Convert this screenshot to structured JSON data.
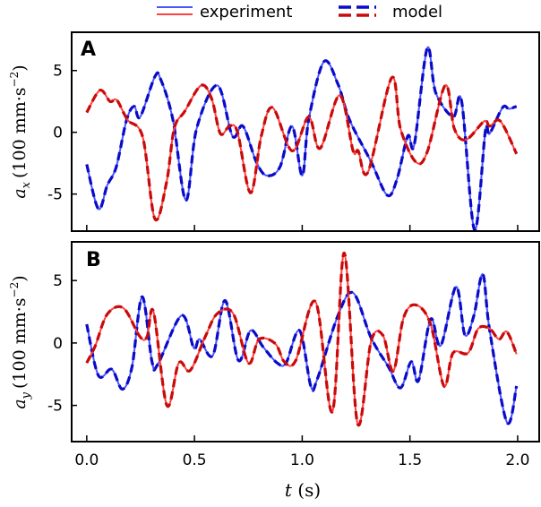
{
  "chart_data": {
    "type": "line",
    "legend": {
      "placement": "top-center",
      "entries": [
        {
          "label": "experiment",
          "style": "solid"
        },
        {
          "label": "model",
          "style": "dashed"
        }
      ]
    },
    "xlabel": "t (s)",
    "xlabel_var": "t",
    "xlabel_unit": "(s)",
    "xlim": [
      -0.07,
      2.1
    ],
    "xticks": [
      0.0,
      0.5,
      1.0,
      1.5,
      2.0
    ],
    "xtick_labels": [
      "0.0",
      "0.5",
      "1.0",
      "1.5",
      "2.0"
    ],
    "colors": {
      "blue_experiment": "#4a55ff",
      "blue_model": "#0a0ac8",
      "red_experiment": "#ff4040",
      "red_model": "#c80a0a"
    },
    "panels": [
      {
        "label": "A",
        "ylabel_var": "a",
        "ylabel_sub": "x",
        "ylabel_unit": "(100 mm·s",
        "ylabel_exp": "−2",
        "ylabel_close": ")",
        "ylim": [
          -8.0,
          8.1
        ],
        "yticks": [
          5,
          0,
          -5
        ],
        "ytick_labels": [
          "5",
          "0",
          "-5"
        ],
        "series": [
          {
            "name": "blue",
            "t": [
              0,
              0.054,
              0.095,
              0.137,
              0.185,
              0.22,
              0.248,
              0.316,
              0.343,
              0.4,
              0.46,
              0.51,
              0.606,
              0.676,
              0.725,
              0.787,
              0.835,
              0.897,
              0.953,
              1.0,
              1.03,
              1.1,
              1.166,
              1.22,
              1.32,
              1.395,
              1.44,
              1.49,
              1.52,
              1.58,
              1.62,
              1.7,
              1.74,
              1.8,
              1.85,
              1.87,
              1.93,
              1.96,
              1.995
            ],
            "values": [
              -2.6,
              -6.2,
              -4.3,
              -2.8,
              1.0,
              2.1,
              1.25,
              4.5,
              4.3,
              1.0,
              -5.5,
              0.3,
              3.8,
              -0.3,
              0.5,
              -2.4,
              -3.5,
              -2.8,
              0.5,
              -3.5,
              1.0,
              5.7,
              3.9,
              1.0,
              -2.4,
              -5.1,
              -3.8,
              -0.3,
              -1.0,
              6.8,
              3.2,
              1.25,
              2.5,
              -7.9,
              0.1,
              -0.1,
              2.0,
              1.9,
              2.1
            ]
          },
          {
            "name": "red",
            "t": [
              0,
              0.061,
              0.108,
              0.14,
              0.19,
              0.26,
              0.316,
              0.37,
              0.406,
              0.455,
              0.531,
              0.58,
              0.62,
              0.663,
              0.7,
              0.76,
              0.81,
              0.863,
              0.953,
              1.03,
              1.083,
              1.174,
              1.236,
              1.26,
              1.306,
              1.415,
              1.456,
              1.527,
              1.58,
              1.664,
              1.706,
              1.76,
              1.845,
              1.87,
              1.92,
              1.995
            ],
            "values": [
              1.6,
              3.4,
              2.5,
              2.6,
              1.0,
              -0.4,
              -7.0,
              -4.1,
              0.3,
              1.7,
              3.8,
              2.7,
              -0.1,
              0.5,
              0.0,
              -4.9,
              -0.3,
              2.0,
              -1.5,
              1.25,
              -1.3,
              3.0,
              -1.5,
              -1.5,
              -3.2,
              4.4,
              0.3,
              -2.4,
              -1.6,
              3.8,
              0.3,
              -0.6,
              0.9,
              0.5,
              0.9,
              -1.75
            ]
          }
        ]
      },
      {
        "label": "B",
        "ylabel_var": "a",
        "ylabel_sub": "y",
        "ylabel_unit": "(100 mm·s",
        "ylabel_exp": "−2",
        "ylabel_close": ")",
        "ylim": [
          -7.9,
          8.1
        ],
        "yticks": [
          5,
          0,
          -5
        ],
        "ytick_labels": [
          "5",
          "0",
          "-5"
        ],
        "series": [
          {
            "name": "blue",
            "t": [
              0,
              0.054,
              0.116,
              0.165,
              0.21,
              0.257,
              0.303,
              0.33,
              0.44,
              0.497,
              0.524,
              0.585,
              0.642,
              0.704,
              0.76,
              0.818,
              0.884,
              0.925,
              0.988,
              1.04,
              1.07,
              1.166,
              1.237,
              1.32,
              1.4,
              1.456,
              1.506,
              1.54,
              1.596,
              1.643,
              1.714,
              1.755,
              1.797,
              1.838,
              1.87,
              1.95,
              1.995
            ],
            "values": [
              1.5,
              -2.6,
              -2.1,
              -3.7,
              -1.9,
              3.7,
              -1.5,
              -1.7,
              2.2,
              -0.4,
              0.3,
              -1.0,
              3.4,
              -1.4,
              1.0,
              -0.3,
              -1.6,
              -1.6,
              1.0,
              -3.45,
              -2.9,
              2.2,
              4.0,
              0.4,
              -1.9,
              -3.6,
              -1.5,
              -3.0,
              1.9,
              -0.2,
              4.5,
              0.65,
              2.2,
              5.5,
              1.0,
              -6.35,
              -3.45
            ]
          },
          {
            "name": "red",
            "t": [
              0,
              0.04,
              0.095,
              0.17,
              0.247,
              0.28,
              0.31,
              0.372,
              0.427,
              0.48,
              0.55,
              0.606,
              0.68,
              0.75,
              0.8,
              0.875,
              0.917,
              0.97,
              1.062,
              1.14,
              1.195,
              1.257,
              1.32,
              1.375,
              1.423,
              1.47,
              1.527,
              1.596,
              1.658,
              1.7,
              1.77,
              1.817,
              1.87,
              1.913,
              1.95,
              1.995
            ],
            "values": [
              -1.6,
              -0.2,
              2.3,
              2.8,
              0.5,
              0.5,
              2.5,
              -5.0,
              -1.6,
              -2.2,
              0.5,
              2.35,
              2.35,
              -1.6,
              0.3,
              -0.05,
              -1.5,
              -1.4,
              3.3,
              -5.5,
              7.2,
              -6.45,
              0.15,
              0.6,
              -2.25,
              2.0,
              3.05,
              1.5,
              -3.45,
              -0.8,
              -0.8,
              1.15,
              1.15,
              0.3,
              0.9,
              -0.9
            ]
          }
        ]
      }
    ]
  }
}
